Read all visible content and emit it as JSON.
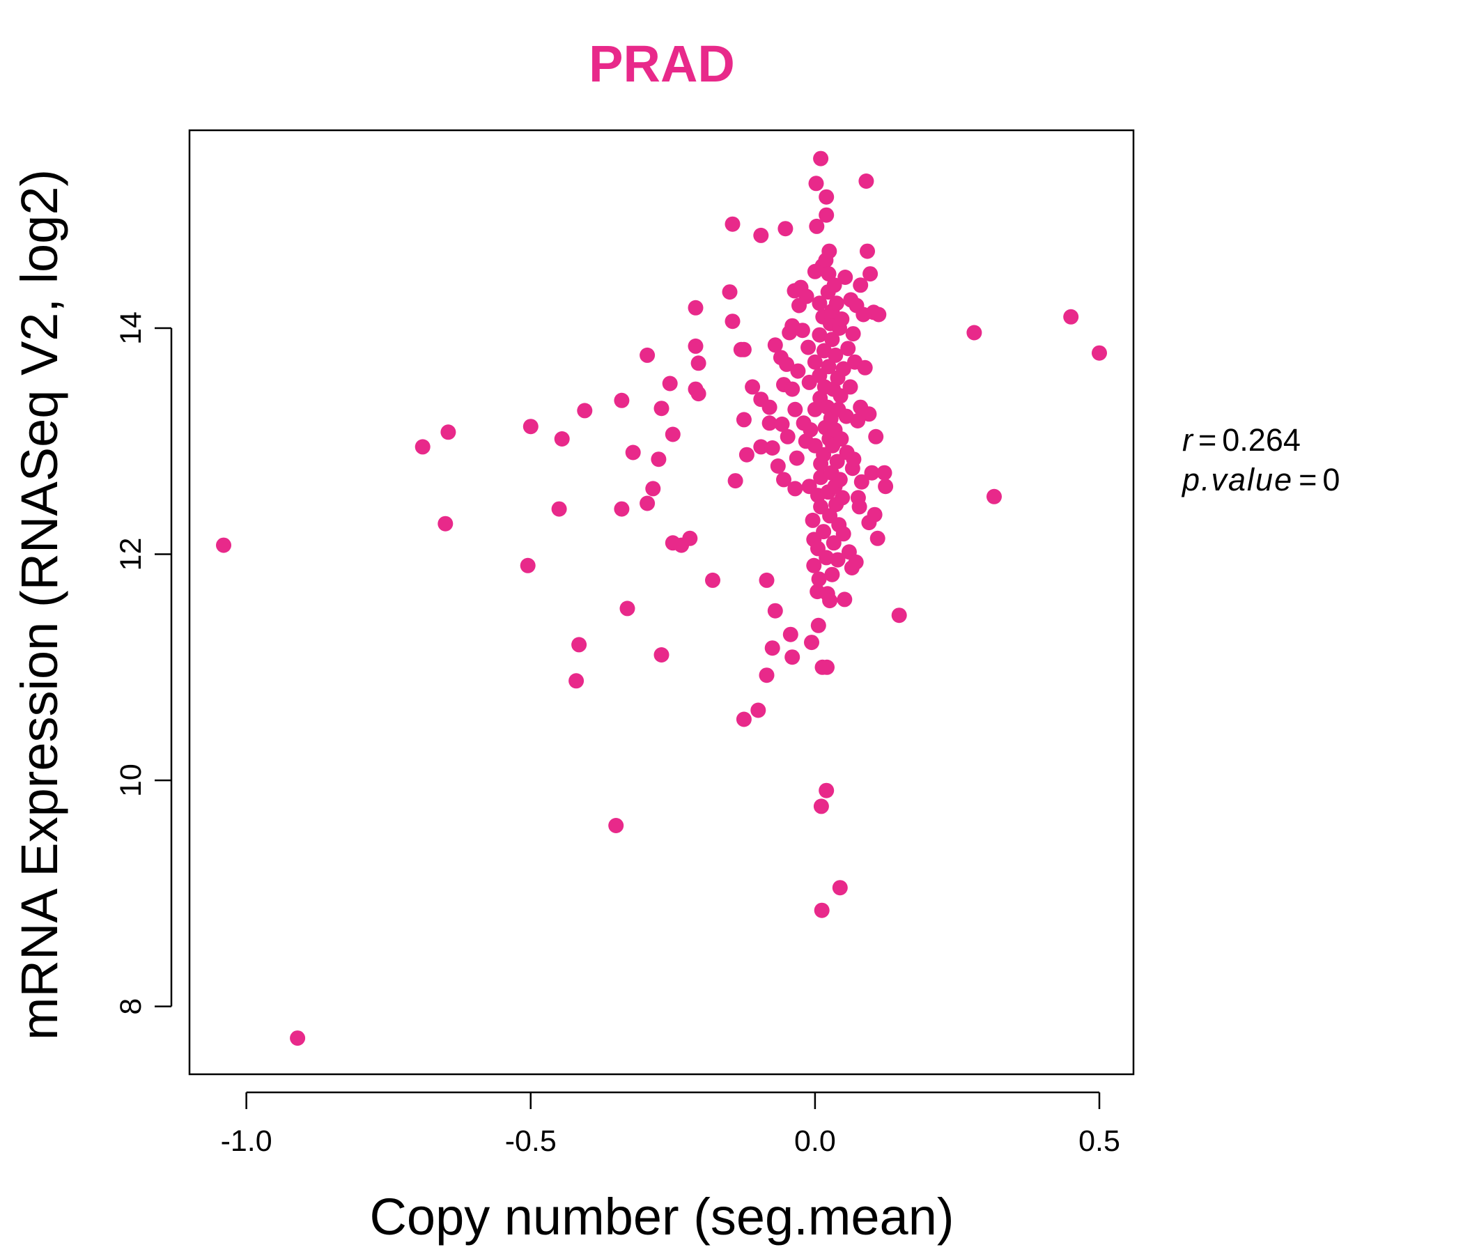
{
  "chart_data": {
    "type": "scatter",
    "title": "PRAD",
    "xlabel": "Copy number (seg.mean)",
    "ylabel": "mRNA Expression (RNASeq V2, log2)",
    "xlim": [
      -1.1,
      0.56
    ],
    "ylim": [
      7.4,
      15.75
    ],
    "xticks": [
      -1.0,
      -0.5,
      0.0,
      0.5
    ],
    "xtick_labels": [
      "-1.0",
      "-0.5",
      "0.0",
      "0.5"
    ],
    "yticks": [
      8,
      10,
      12,
      14
    ],
    "ytick_labels": [
      "8",
      "10",
      "12",
      "14"
    ],
    "grid": false,
    "legend": "none",
    "point_color": "#E8298A",
    "stats": {
      "r_label": "r",
      "r_value": "0.264",
      "p_label": "p.value",
      "p_value": "0"
    },
    "points": [
      [
        -1.04,
        12.08
      ],
      [
        -0.91,
        7.72
      ],
      [
        -0.69,
        12.95
      ],
      [
        -0.645,
        13.08
      ],
      [
        -0.65,
        12.27
      ],
      [
        -0.505,
        11.9
      ],
      [
        -0.5,
        13.13
      ],
      [
        -0.445,
        13.02
      ],
      [
        -0.45,
        12.4
      ],
      [
        -0.405,
        13.27
      ],
      [
        -0.415,
        11.2
      ],
      [
        -0.42,
        10.88
      ],
      [
        -0.35,
        9.6
      ],
      [
        -0.34,
        13.36
      ],
      [
        -0.34,
        12.4
      ],
      [
        -0.33,
        11.52
      ],
      [
        -0.32,
        12.9
      ],
      [
        -0.295,
        13.76
      ],
      [
        -0.295,
        12.45
      ],
      [
        -0.285,
        12.58
      ],
      [
        -0.27,
        13.29
      ],
      [
        -0.275,
        12.84
      ],
      [
        -0.27,
        11.11
      ],
      [
        -0.255,
        13.51
      ],
      [
        -0.25,
        13.06
      ],
      [
        -0.25,
        12.1
      ],
      [
        -0.235,
        12.08
      ],
      [
        -0.22,
        12.14
      ],
      [
        -0.21,
        14.18
      ],
      [
        -0.21,
        13.84
      ],
      [
        -0.205,
        13.69
      ],
      [
        -0.21,
        13.46
      ],
      [
        -0.205,
        13.42
      ],
      [
        -0.18,
        11.77
      ],
      [
        -0.15,
        14.32
      ],
      [
        -0.145,
        14.06
      ],
      [
        -0.145,
        14.92
      ],
      [
        -0.14,
        12.65
      ],
      [
        -0.13,
        13.81
      ],
      [
        -0.125,
        13.81
      ],
      [
        -0.125,
        13.19
      ],
      [
        -0.12,
        12.88
      ],
      [
        -0.125,
        10.54
      ],
      [
        -0.11,
        13.48
      ],
      [
        -0.095,
        14.82
      ],
      [
        -0.1,
        10.62
      ],
      [
        -0.095,
        13.37
      ],
      [
        -0.095,
        12.95
      ],
      [
        -0.085,
        11.77
      ],
      [
        -0.085,
        10.93
      ],
      [
        -0.08,
        13.3
      ],
      [
        -0.08,
        13.16
      ],
      [
        -0.075,
        11.17
      ],
      [
        -0.075,
        12.94
      ],
      [
        -0.07,
        13.85
      ],
      [
        -0.07,
        11.5
      ],
      [
        -0.065,
        12.78
      ],
      [
        -0.06,
        13.74
      ],
      [
        -0.058,
        13.15
      ],
      [
        -0.055,
        13.5
      ],
      [
        -0.055,
        12.66
      ],
      [
        -0.052,
        14.88
      ],
      [
        -0.05,
        13.68
      ],
      [
        -0.048,
        13.04
      ],
      [
        -0.045,
        13.96
      ],
      [
        -0.043,
        11.29
      ],
      [
        -0.04,
        11.09
      ],
      [
        -0.04,
        14.02
      ],
      [
        -0.04,
        13.46
      ],
      [
        -0.036,
        14.33
      ],
      [
        -0.035,
        13.28
      ],
      [
        -0.035,
        12.58
      ],
      [
        -0.032,
        12.85
      ],
      [
        -0.03,
        13.62
      ],
      [
        -0.028,
        14.2
      ],
      [
        -0.025,
        14.36
      ],
      [
        -0.022,
        13.98
      ],
      [
        -0.02,
        13.16
      ],
      [
        -0.016,
        13.0
      ],
      [
        -0.015,
        14.28
      ],
      [
        -0.012,
        13.83
      ],
      [
        -0.01,
        13.52
      ],
      [
        -0.01,
        12.6
      ],
      [
        -0.008,
        13.1
      ],
      [
        -0.006,
        11.22
      ],
      [
        -0.004,
        12.3
      ],
      [
        -0.002,
        12.13
      ],
      [
        -0.002,
        11.9
      ],
      [
        0.0,
        14.5
      ],
      [
        0.0,
        13.7
      ],
      [
        0.0,
        13.28
      ],
      [
        0.0,
        12.96
      ],
      [
        0.002,
        15.28
      ],
      [
        0.003,
        14.9
      ],
      [
        0.004,
        11.67
      ],
      [
        0.005,
        12.05
      ],
      [
        0.005,
        12.52
      ],
      [
        0.006,
        11.37
      ],
      [
        0.007,
        11.78
      ],
      [
        0.008,
        14.22
      ],
      [
        0.008,
        13.94
      ],
      [
        0.008,
        13.58
      ],
      [
        0.009,
        13.38
      ],
      [
        0.01,
        15.5
      ],
      [
        0.01,
        12.8
      ],
      [
        0.01,
        12.42
      ],
      [
        0.01,
        12.68
      ],
      [
        0.011,
        9.77
      ],
      [
        0.012,
        8.85
      ],
      [
        0.013,
        11.0
      ],
      [
        0.013,
        14.55
      ],
      [
        0.014,
        14.1
      ],
      [
        0.015,
        12.88
      ],
      [
        0.015,
        12.2
      ],
      [
        0.016,
        13.8
      ],
      [
        0.017,
        13.48
      ],
      [
        0.018,
        13.12
      ],
      [
        0.019,
        14.6
      ],
      [
        0.02,
        9.91
      ],
      [
        0.02,
        15.0
      ],
      [
        0.02,
        15.16
      ],
      [
        0.02,
        11.97
      ],
      [
        0.021,
        11.0
      ],
      [
        0.022,
        11.65
      ],
      [
        0.022,
        13.3
      ],
      [
        0.023,
        14.32
      ],
      [
        0.023,
        12.55
      ],
      [
        0.024,
        14.48
      ],
      [
        0.024,
        13.66
      ],
      [
        0.025,
        14.68
      ],
      [
        0.025,
        13.02
      ],
      [
        0.026,
        12.34
      ],
      [
        0.026,
        11.59
      ],
      [
        0.027,
        14.04
      ],
      [
        0.028,
        13.2
      ],
      [
        0.029,
        12.72
      ],
      [
        0.03,
        11.82
      ],
      [
        0.03,
        13.9
      ],
      [
        0.03,
        14.15
      ],
      [
        0.031,
        12.96
      ],
      [
        0.032,
        13.46
      ],
      [
        0.033,
        12.1
      ],
      [
        0.034,
        14.38
      ],
      [
        0.035,
        13.1
      ],
      [
        0.035,
        12.6
      ],
      [
        0.036,
        13.76
      ],
      [
        0.037,
        12.44
      ],
      [
        0.038,
        14.22
      ],
      [
        0.039,
        12.82
      ],
      [
        0.04,
        13.56
      ],
      [
        0.04,
        11.95
      ],
      [
        0.041,
        13.28
      ],
      [
        0.042,
        12.26
      ],
      [
        0.043,
        14.0
      ],
      [
        0.044,
        9.05
      ],
      [
        0.044,
        12.66
      ],
      [
        0.045,
        13.4
      ],
      [
        0.046,
        13.02
      ],
      [
        0.047,
        14.08
      ],
      [
        0.048,
        12.5
      ],
      [
        0.05,
        13.64
      ],
      [
        0.05,
        12.18
      ],
      [
        0.052,
        11.6
      ],
      [
        0.053,
        14.45
      ],
      [
        0.055,
        13.22
      ],
      [
        0.056,
        12.9
      ],
      [
        0.058,
        13.82
      ],
      [
        0.06,
        12.02
      ],
      [
        0.062,
        13.48
      ],
      [
        0.063,
        14.25
      ],
      [
        0.065,
        11.88
      ],
      [
        0.066,
        12.76
      ],
      [
        0.067,
        13.95
      ],
      [
        0.068,
        12.84
      ],
      [
        0.07,
        13.7
      ],
      [
        0.072,
        11.93
      ],
      [
        0.073,
        14.2
      ],
      [
        0.075,
        13.18
      ],
      [
        0.076,
        12.5
      ],
      [
        0.078,
        12.42
      ],
      [
        0.08,
        14.38
      ],
      [
        0.08,
        13.3
      ],
      [
        0.082,
        12.64
      ],
      [
        0.085,
        14.12
      ],
      [
        0.088,
        13.65
      ],
      [
        0.09,
        15.3
      ],
      [
        0.092,
        14.68
      ],
      [
        0.095,
        12.28
      ],
      [
        0.095,
        13.24
      ],
      [
        0.097,
        14.48
      ],
      [
        0.1,
        12.72
      ],
      [
        0.103,
        14.14
      ],
      [
        0.105,
        12.35
      ],
      [
        0.107,
        13.04
      ],
      [
        0.11,
        12.14
      ],
      [
        0.112,
        14.12
      ],
      [
        0.122,
        12.72
      ],
      [
        0.124,
        12.6
      ],
      [
        0.148,
        11.46
      ],
      [
        0.28,
        13.96
      ],
      [
        0.315,
        12.51
      ],
      [
        0.45,
        14.1
      ],
      [
        0.5,
        13.78
      ]
    ]
  }
}
